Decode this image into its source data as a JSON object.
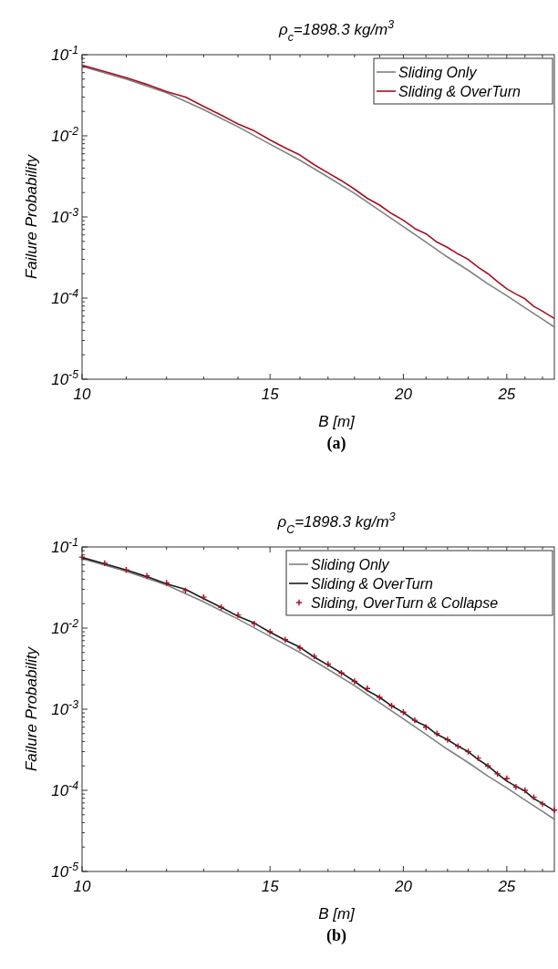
{
  "chart_data": [
    {
      "type": "line",
      "title": "ρ$_{c}$=1898.3 kg/m$^{3}$",
      "xlabel": "B [m]",
      "ylabel": "Failure Probability",
      "annotations": [
        "(a)"
      ],
      "log": "xy",
      "grid": false,
      "legend": "top right",
      "marker": "none",
      "line_style": "solid",
      "xlim": [
        10,
        27.7
      ],
      "ylim": [
        1e-05,
        0.1
      ],
      "xticks": [
        10,
        {
          "value": 11,
          "label": null
        },
        {
          "value": 12,
          "label": null
        },
        {
          "value": 13,
          "label": null
        },
        {
          "value": 14,
          "label": null
        },
        15,
        {
          "value": 16,
          "label": null
        },
        {
          "value": 17,
          "label": null
        },
        {
          "value": 18,
          "label": null
        },
        {
          "value": 19,
          "label": null
        },
        20,
        {
          "value": 21,
          "label": null
        },
        {
          "value": 22,
          "label": null
        },
        {
          "value": 23,
          "label": null
        },
        {
          "value": 24,
          "label": null
        },
        25,
        {
          "value": 26,
          "label": null
        },
        {
          "value": 27,
          "label": null
        }
      ],
      "yticks": [
        {
          "value": 1e-05,
          "label": "10$^{-5}$"
        },
        {
          "value": 2e-05,
          "label": null
        },
        {
          "value": 3e-05,
          "label": null
        },
        {
          "value": 4e-05,
          "label": null
        },
        {
          "value": 5e-05,
          "label": null
        },
        {
          "value": 6e-05,
          "label": null
        },
        {
          "value": 7e-05,
          "label": null
        },
        {
          "value": 8e-05,
          "label": null
        },
        {
          "value": 9e-05,
          "label": null
        },
        {
          "value": 0.0001,
          "label": "10$^{-4}$"
        },
        {
          "value": 0.0002,
          "label": null
        },
        {
          "value": 0.0003,
          "label": null
        },
        {
          "value": 0.0004,
          "label": null
        },
        {
          "value": 0.0005,
          "label": null
        },
        {
          "value": 0.0006,
          "label": null
        },
        {
          "value": 0.0007,
          "label": null
        },
        {
          "value": 0.0008,
          "label": null
        },
        {
          "value": 0.0009,
          "label": null
        },
        {
          "value": 0.001,
          "label": "10$^{-3}$"
        },
        {
          "value": 0.002,
          "label": null
        },
        {
          "value": 0.003,
          "label": null
        },
        {
          "value": 0.004,
          "label": null
        },
        {
          "value": 0.005,
          "label": null
        },
        {
          "value": 0.006,
          "label": null
        },
        {
          "value": 0.007,
          "label": null
        },
        {
          "value": 0.008,
          "label": null
        },
        {
          "value": 0.009,
          "label": null
        },
        {
          "value": 0.01,
          "label": "10$^{-2}$"
        },
        {
          "value": 0.02,
          "label": null
        },
        {
          "value": 0.03,
          "label": null
        },
        {
          "value": 0.04,
          "label": null
        },
        {
          "value": 0.05,
          "label": null
        },
        {
          "value": 0.06,
          "label": null
        },
        {
          "value": 0.07,
          "label": null
        },
        {
          "value": 0.08,
          "label": null
        },
        {
          "value": 0.09,
          "label": null
        },
        {
          "value": 0.1,
          "label": "10$^{-1}$"
        }
      ],
      "series": [
        {
          "name": "Sliding Only",
          "color": "#808080",
          "x": [
            10,
            11,
            12,
            13,
            14,
            15,
            16,
            17,
            18,
            19,
            20,
            21,
            22,
            23,
            24,
            25,
            26,
            27,
            27.7
          ],
          "values": [
            0.072,
            0.05,
            0.034,
            0.021,
            0.0129,
            0.0079,
            0.005,
            0.0031,
            0.00195,
            0.0012,
            0.00076,
            0.00049,
            0.00032,
            0.00022,
            0.00015,
            0.000107,
            7.6e-05,
            5.5e-05,
            4.4e-05
          ]
        },
        {
          "name": "Sliding & OverTurn",
          "color": "#a50f26",
          "x": [
            10,
            10.5,
            11,
            11.5,
            12,
            12.5,
            13,
            13.5,
            14,
            14.5,
            15,
            15.5,
            16,
            16.5,
            17,
            17.5,
            18,
            18.5,
            19,
            19.5,
            20,
            20.5,
            21,
            21.5,
            22,
            22.5,
            23,
            23.5,
            24,
            24.5,
            25,
            25.5,
            26,
            26.5,
            27,
            27.7
          ],
          "values": [
            0.074,
            0.062,
            0.052,
            0.043,
            0.035,
            0.03,
            0.023,
            0.018,
            0.014,
            0.0115,
            0.0089,
            0.0071,
            0.0058,
            0.0044,
            0.0035,
            0.0028,
            0.0022,
            0.0017,
            0.0014,
            0.0011,
            0.00091,
            0.00072,
            0.00062,
            0.00049,
            0.00042,
            0.00035,
            0.0003,
            0.00024,
            0.0002,
            0.00016,
            0.00013,
            0.000112,
            9.8e-05,
            7.9e-05,
            6.9e-05,
            5.6e-05
          ]
        }
      ]
    },
    {
      "type": "line",
      "title": "ρ$_{C}$=1898.3 kg/m$^{3}$",
      "xlabel": "B [m]",
      "ylabel": "Failure Probability",
      "annotations": [
        "(b)"
      ],
      "log": "xy",
      "grid": false,
      "legend": "top right",
      "marker": "none",
      "line_style": "solid",
      "xlim": [
        10,
        27.7
      ],
      "ylim": [
        1e-05,
        0.1
      ],
      "xticks": [
        10,
        {
          "value": 11,
          "label": null
        },
        {
          "value": 12,
          "label": null
        },
        {
          "value": 13,
          "label": null
        },
        {
          "value": 14,
          "label": null
        },
        15,
        {
          "value": 16,
          "label": null
        },
        {
          "value": 17,
          "label": null
        },
        {
          "value": 18,
          "label": null
        },
        {
          "value": 19,
          "label": null
        },
        20,
        {
          "value": 21,
          "label": null
        },
        {
          "value": 22,
          "label": null
        },
        {
          "value": 23,
          "label": null
        },
        {
          "value": 24,
          "label": null
        },
        25,
        {
          "value": 26,
          "label": null
        },
        {
          "value": 27,
          "label": null
        }
      ],
      "yticks": [
        {
          "value": 1e-05,
          "label": "10$^{-5}$"
        },
        {
          "value": 2e-05,
          "label": null
        },
        {
          "value": 3e-05,
          "label": null
        },
        {
          "value": 4e-05,
          "label": null
        },
        {
          "value": 5e-05,
          "label": null
        },
        {
          "value": 6e-05,
          "label": null
        },
        {
          "value": 7e-05,
          "label": null
        },
        {
          "value": 8e-05,
          "label": null
        },
        {
          "value": 9e-05,
          "label": null
        },
        {
          "value": 0.0001,
          "label": "10$^{-4}$"
        },
        {
          "value": 0.0002,
          "label": null
        },
        {
          "value": 0.0003,
          "label": null
        },
        {
          "value": 0.0004,
          "label": null
        },
        {
          "value": 0.0005,
          "label": null
        },
        {
          "value": 0.0006,
          "label": null
        },
        {
          "value": 0.0007,
          "label": null
        },
        {
          "value": 0.0008,
          "label": null
        },
        {
          "value": 0.0009,
          "label": null
        },
        {
          "value": 0.001,
          "label": "10$^{-3}$"
        },
        {
          "value": 0.002,
          "label": null
        },
        {
          "value": 0.003,
          "label": null
        },
        {
          "value": 0.004,
          "label": null
        },
        {
          "value": 0.005,
          "label": null
        },
        {
          "value": 0.006,
          "label": null
        },
        {
          "value": 0.007,
          "label": null
        },
        {
          "value": 0.008,
          "label": null
        },
        {
          "value": 0.009,
          "label": null
        },
        {
          "value": 0.01,
          "label": "10$^{-2}$"
        },
        {
          "value": 0.02,
          "label": null
        },
        {
          "value": 0.03,
          "label": null
        },
        {
          "value": 0.04,
          "label": null
        },
        {
          "value": 0.05,
          "label": null
        },
        {
          "value": 0.06,
          "label": null
        },
        {
          "value": 0.07,
          "label": null
        },
        {
          "value": 0.08,
          "label": null
        },
        {
          "value": 0.09,
          "label": null
        },
        {
          "value": 0.1,
          "label": "10$^{-1}$"
        }
      ],
      "series": [
        {
          "name": "Sliding Only",
          "color": "#808080",
          "x": [
            10,
            11,
            12,
            13,
            14,
            15,
            16,
            17,
            18,
            19,
            20,
            21,
            22,
            23,
            24,
            25,
            26,
            27,
            27.7
          ],
          "values": [
            0.072,
            0.05,
            0.034,
            0.021,
            0.0129,
            0.0079,
            0.005,
            0.0031,
            0.00195,
            0.0012,
            0.00076,
            0.00049,
            0.00032,
            0.00022,
            0.00015,
            0.000107,
            7.6e-05,
            5.5e-05,
            4.4e-05
          ]
        },
        {
          "name": "Sliding & OverTurn",
          "color": "#1a1a1a",
          "x": [
            10,
            10.5,
            11,
            11.5,
            12,
            12.5,
            13,
            13.5,
            14,
            14.5,
            15,
            15.5,
            16,
            16.5,
            17,
            17.5,
            18,
            18.5,
            19,
            19.5,
            20,
            20.5,
            21,
            21.5,
            22,
            22.5,
            23,
            23.5,
            24,
            24.5,
            25,
            25.5,
            26,
            26.5,
            27,
            27.7
          ],
          "values": [
            0.074,
            0.062,
            0.052,
            0.043,
            0.035,
            0.03,
            0.023,
            0.018,
            0.014,
            0.0115,
            0.0089,
            0.0071,
            0.0058,
            0.0044,
            0.0035,
            0.0028,
            0.0022,
            0.0017,
            0.0014,
            0.0011,
            0.00091,
            0.00072,
            0.00062,
            0.00049,
            0.00042,
            0.00035,
            0.0003,
            0.00024,
            0.0002,
            0.00016,
            0.00013,
            0.000112,
            9.8e-05,
            7.9e-05,
            6.9e-05,
            5.6e-05
          ]
        },
        {
          "name": "Sliding, OverTurn & Collapse",
          "type": "scatter",
          "marker": "cross",
          "color": "#a50f26",
          "x": [
            10,
            10.5,
            11,
            11.5,
            12,
            12.5,
            13,
            13.5,
            14,
            14.5,
            15,
            15.5,
            16,
            16.5,
            17,
            17.5,
            18,
            18.5,
            19,
            19.5,
            20,
            20.5,
            21,
            21.5,
            22,
            22.5,
            23,
            23.5,
            24,
            24.5,
            25,
            25.5,
            26,
            26.5,
            27,
            27.7
          ],
          "values": [
            0.075,
            0.063,
            0.052,
            0.044,
            0.036,
            0.029,
            0.024,
            0.018,
            0.0145,
            0.0113,
            0.009,
            0.0072,
            0.0057,
            0.0045,
            0.0036,
            0.0028,
            0.0022,
            0.0018,
            0.0014,
            0.0011,
            0.00092,
            0.00073,
            0.0006,
            0.0005,
            0.00042,
            0.00035,
            0.0003,
            0.00025,
            0.0002,
            0.00016,
            0.00014,
            0.00011,
            0.0001,
            8.2e-05,
            6.8e-05,
            5.7e-05
          ]
        }
      ]
    }
  ]
}
